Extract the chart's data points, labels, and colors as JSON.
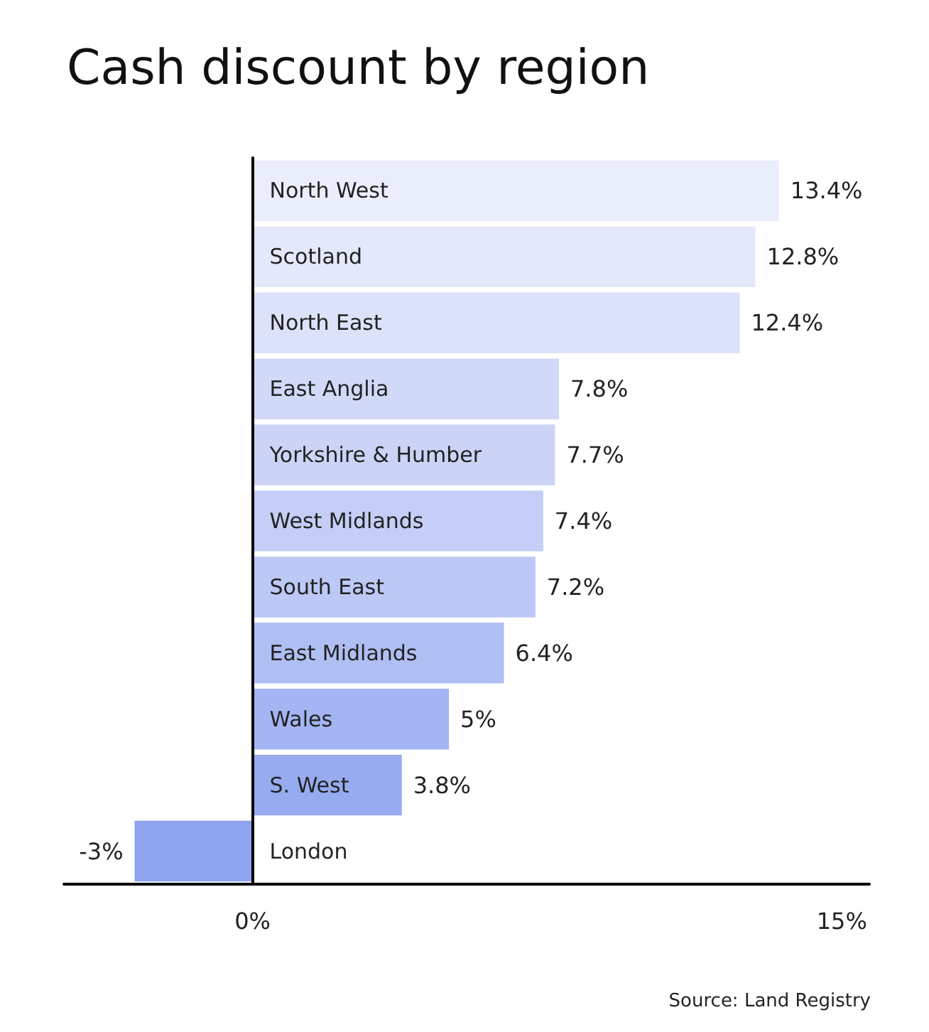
{
  "chart_data": {
    "type": "bar",
    "orientation": "horizontal",
    "title": "Cash discount by region",
    "categories": [
      "North West",
      "Scotland",
      "North East",
      "East Anglia",
      "Yorkshire & Humber",
      "West Midlands",
      "South East",
      "East Midlands",
      "Wales",
      "S. West",
      "London"
    ],
    "values": [
      13.4,
      12.8,
      12.4,
      7.8,
      7.7,
      7.4,
      7.2,
      6.4,
      5,
      3.8,
      -3
    ],
    "value_labels": [
      "13.4%",
      "12.8%",
      "12.4%",
      "7.8%",
      "7.7%",
      "7.4%",
      "7.2%",
      "6.4%",
      "5%",
      "3.8%",
      "-3%"
    ],
    "colors": [
      "#eaedfb",
      "#e3e8fa",
      "#dce2f9",
      "#d1d9f8",
      "#cbd4f7",
      "#c4cef6",
      "#bcc8f5",
      "#b0bff3",
      "#a3b5f2",
      "#97abf0",
      "#8ea3ef"
    ],
    "xlim": [
      -4.8,
      15.7
    ],
    "xticks": [
      {
        "value": 0,
        "label": "0%"
      },
      {
        "value": 15,
        "label": "15%"
      }
    ],
    "grid": false,
    "annotations": [
      "Source: Land Registry"
    ]
  }
}
